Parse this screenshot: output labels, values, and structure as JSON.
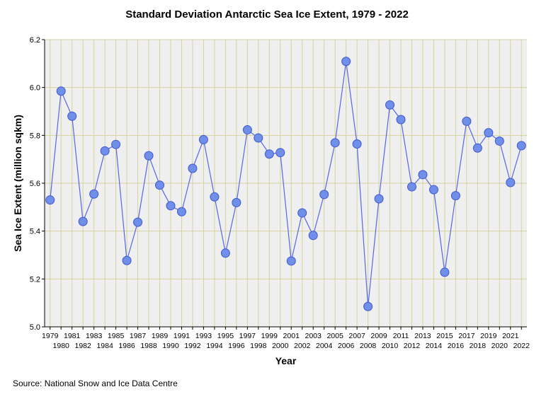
{
  "chart_data": {
    "type": "line",
    "title": "Standard Deviation Antarctic Sea Ice Extent, 1979 - 2022",
    "xlabel": "Year",
    "ylabel": "Sea Ice Extent (million sqkm)",
    "ylim": [
      5.0,
      6.2
    ],
    "yticks": [
      "5.0",
      "5.2",
      "5.4",
      "5.6",
      "5.8",
      "6.0",
      "6.2"
    ],
    "grid": true,
    "x": [
      "1979",
      "1980",
      "1981",
      "1982",
      "1983",
      "1984",
      "1985",
      "1986",
      "1987",
      "1988",
      "1989",
      "1990",
      "1991",
      "1992",
      "1993",
      "1994",
      "1995",
      "1996",
      "1997",
      "1998",
      "1999",
      "2000",
      "2001",
      "2002",
      "2003",
      "2004",
      "2005",
      "2006",
      "2007",
      "2008",
      "2009",
      "2010",
      "2011",
      "2012",
      "2013",
      "2014",
      "2015",
      "2016",
      "2017",
      "2018",
      "2019",
      "2020",
      "2021",
      "2022"
    ],
    "series": [
      {
        "name": "Standard Deviation",
        "values": [
          5.53,
          5.985,
          5.88,
          5.44,
          5.555,
          5.735,
          5.762,
          5.277,
          5.437,
          5.715,
          5.592,
          5.506,
          5.481,
          5.662,
          5.782,
          5.543,
          5.308,
          5.519,
          5.823,
          5.789,
          5.722,
          5.728,
          5.275,
          5.476,
          5.382,
          5.553,
          5.769,
          6.109,
          5.764,
          5.085,
          5.535,
          5.927,
          5.866,
          5.585,
          5.636,
          5.573,
          5.228,
          5.548,
          5.859,
          5.747,
          5.811,
          5.776,
          5.603,
          5.757
        ],
        "line_color": "#5566e8",
        "marker_fill": "#6f8fe8",
        "marker_edge": "#3f57d0"
      }
    ]
  },
  "source": "Source: National Snow and Ice Data Centre",
  "colors": {
    "plot_bg": "#efefef",
    "grid": "#d6d2a0",
    "axis": "#000000"
  }
}
